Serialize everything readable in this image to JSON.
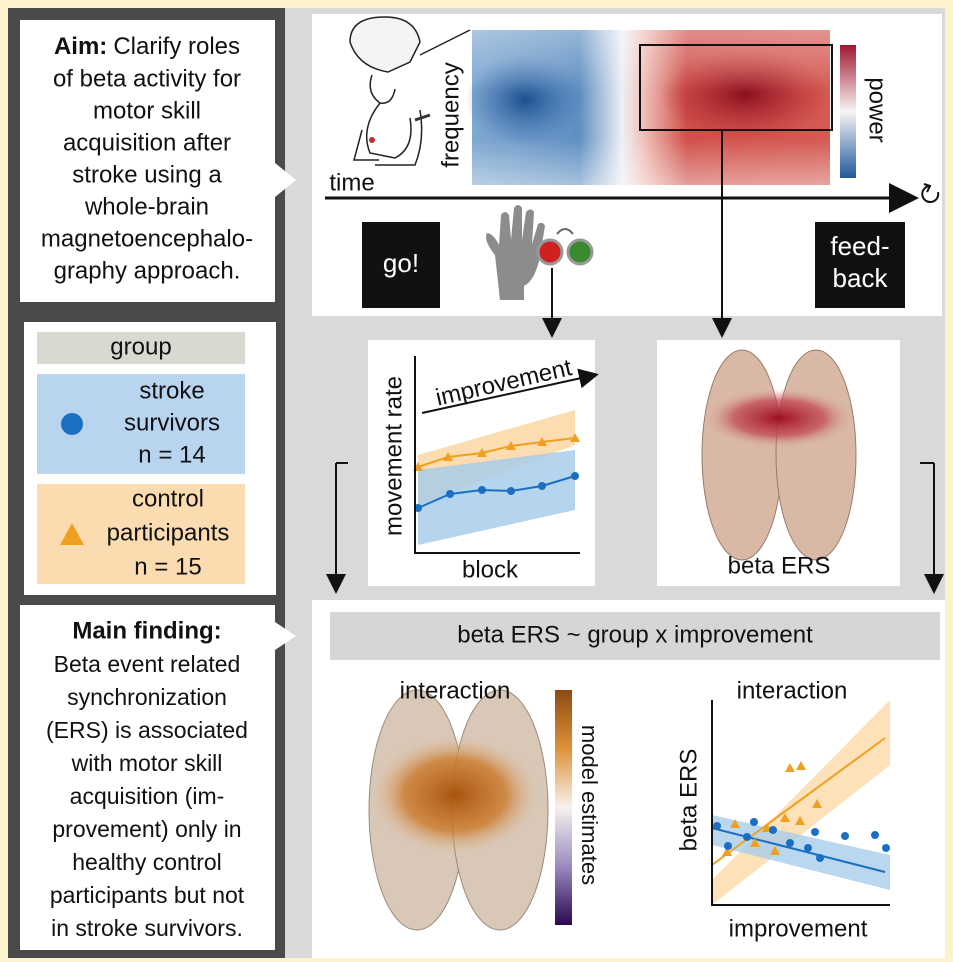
{
  "aim": {
    "heading": "Aim:",
    "lines": [
      "Clarify roles",
      "of beta activity for",
      "motor skill",
      "acquisition after",
      "stroke using a",
      "whole-brain",
      "magnetoencephalo-",
      "graphy approach."
    ]
  },
  "legend": {
    "title": "group",
    "groups": [
      {
        "lines": [
          "stroke",
          "survivors",
          "n = 14"
        ]
      },
      {
        "lines": [
          "control",
          "participants",
          "n = 15"
        ]
      }
    ]
  },
  "finding": {
    "heading": "Main finding:",
    "lines": [
      "Beta event related",
      "synchronization",
      "(ERS) is associated",
      "with motor skill",
      "acquisition (im-",
      "provement) only in",
      "healthy control",
      "participants but not",
      "in stroke survivors."
    ]
  },
  "task": {
    "frequency_label": "frequency",
    "time_label": "time",
    "colorbar_label": "power",
    "go": "go!",
    "feedback_lines": [
      "feed-",
      "back"
    ]
  },
  "behavior": {
    "y_label": "movement rate",
    "x_label": "block",
    "arrow_label": "improvement"
  },
  "ers": {
    "label": "beta ERS"
  },
  "model": {
    "formula": "beta ERS ~ group x improvement",
    "brain_title": "interaction",
    "colorbar_label": "model estimates",
    "plot_title": "interaction",
    "y_label": "beta ERS",
    "x_label": "improvement"
  }
}
